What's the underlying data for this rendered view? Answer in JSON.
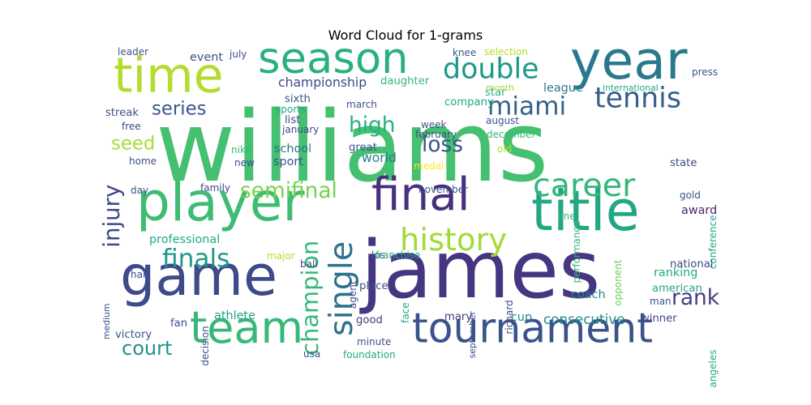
{
  "chart_data": {
    "type": "wordcloud",
    "title": "Word Cloud for 1-grams",
    "palette": [
      "#440154",
      "#482878",
      "#3e4989",
      "#31688e",
      "#26828e",
      "#1f9e89",
      "#35b779",
      "#6ece58",
      "#b5de2b",
      "#fde725"
    ],
    "words": [
      {
        "text": "williams",
        "weight": 100,
        "color": "#45bf70",
        "vertical": false
      },
      {
        "text": "james",
        "weight": 82,
        "color": "#463580",
        "vertical": false
      },
      {
        "text": "game",
        "weight": 57,
        "color": "#3e4a89",
        "vertical": false
      },
      {
        "text": "title",
        "weight": 57,
        "color": "#22a785",
        "vertical": false
      },
      {
        "text": "player",
        "weight": 55,
        "color": "#3fbc73",
        "vertical": false
      },
      {
        "text": "year",
        "weight": 54,
        "color": "#2a788e",
        "vertical": false
      },
      {
        "text": "time",
        "weight": 50,
        "color": "#b2dd2d",
        "vertical": false
      },
      {
        "text": "final",
        "weight": 47,
        "color": "#46307e",
        "vertical": false
      },
      {
        "text": "team",
        "weight": 45,
        "color": "#37b878",
        "vertical": false
      },
      {
        "text": "season",
        "weight": 44,
        "color": "#2ab07f",
        "vertical": false
      },
      {
        "text": "tournament",
        "weight": 42,
        "color": "#3a538b",
        "vertical": false
      },
      {
        "text": "career",
        "weight": 33,
        "color": "#35b779",
        "vertical": false
      },
      {
        "text": "single",
        "weight": 33,
        "color": "#2d718e",
        "vertical": true
      },
      {
        "text": "history",
        "weight": 32,
        "color": "#a2da37",
        "vertical": false
      },
      {
        "text": "double",
        "weight": 29,
        "color": "#1f988b",
        "vertical": false
      },
      {
        "text": "tennis",
        "weight": 29,
        "color": "#355f8d",
        "vertical": false
      },
      {
        "text": "miami",
        "weight": 26,
        "color": "#33638d",
        "vertical": false
      },
      {
        "text": "finals",
        "weight": 26,
        "color": "#1f988b",
        "vertical": false
      },
      {
        "text": "champion",
        "weight": 24,
        "color": "#37b878",
        "vertical": true
      },
      {
        "text": "injury",
        "weight": 23,
        "color": "#3f4889",
        "vertical": true
      },
      {
        "text": "semifinal",
        "weight": 22,
        "color": "#7ad151",
        "vertical": false
      },
      {
        "text": "high",
        "weight": 22,
        "color": "#2ab07f",
        "vertical": false
      },
      {
        "text": "loss",
        "weight": 22,
        "color": "#3b528b",
        "vertical": false
      },
      {
        "text": "rank",
        "weight": 22,
        "color": "#433e85",
        "vertical": false
      },
      {
        "text": "court",
        "weight": 20,
        "color": "#21908d",
        "vertical": false
      },
      {
        "text": "series",
        "weight": 19,
        "color": "#39568c",
        "vertical": false
      },
      {
        "text": "seed",
        "weight": 19,
        "color": "#a8db34",
        "vertical": false
      },
      {
        "text": "championship",
        "weight": 13,
        "color": "#3f4788",
        "vertical": false
      },
      {
        "text": "consecutive",
        "weight": 14,
        "color": "#228c8d",
        "vertical": false
      },
      {
        "text": "world",
        "weight": 13,
        "color": "#287d8e",
        "vertical": false
      },
      {
        "text": "school",
        "weight": 12,
        "color": "#2c728e",
        "vertical": false
      },
      {
        "text": "sport",
        "weight": 12,
        "color": "#3b528b",
        "vertical": false
      },
      {
        "text": "athlete",
        "weight": 12,
        "color": "#1fa088",
        "vertical": false
      },
      {
        "text": "professional",
        "weight": 12,
        "color": "#22a884",
        "vertical": false
      },
      {
        "text": "ranking",
        "weight": 12,
        "color": "#22a884",
        "vertical": false
      },
      {
        "text": "award",
        "weight": 12,
        "color": "#481f70",
        "vertical": false
      },
      {
        "text": "league",
        "weight": 12,
        "color": "#2a788e",
        "vertical": false
      },
      {
        "text": "event",
        "weight": 12,
        "color": "#3b528b",
        "vertical": false
      },
      {
        "text": "cup",
        "weight": 12,
        "color": "#23898e",
        "vertical": false
      },
      {
        "text": "coach",
        "weight": 12,
        "color": "#26828e",
        "vertical": false
      },
      {
        "text": "state",
        "weight": 11,
        "color": "#3e4c8a",
        "vertical": false
      },
      {
        "text": "great",
        "weight": 11,
        "color": "#3a548c",
        "vertical": false
      },
      {
        "text": "victory",
        "weight": 11,
        "color": "#3a548c",
        "vertical": false
      },
      {
        "text": "winner",
        "weight": 11,
        "color": "#3e4989",
        "vertical": false
      },
      {
        "text": "mary",
        "weight": 11,
        "color": "#453781",
        "vertical": false
      },
      {
        "text": "star",
        "weight": 11,
        "color": "#2ab07f",
        "vertical": false
      },
      {
        "text": "sixth",
        "weight": 11,
        "color": "#3b528b",
        "vertical": false
      },
      {
        "text": "list",
        "weight": 11,
        "color": "#3e4c8a",
        "vertical": false
      },
      {
        "text": "streak",
        "weight": 11,
        "color": "#3b528b",
        "vertical": false
      },
      {
        "text": "fan",
        "weight": 11,
        "color": "#3e4c8a",
        "vertical": false
      },
      {
        "text": "daughter",
        "weight": 11,
        "color": "#35b779",
        "vertical": false
      },
      {
        "text": "american",
        "weight": 11,
        "color": "#22a884",
        "vertical": false
      },
      {
        "text": "national",
        "weight": 11,
        "color": "#3e4989",
        "vertical": false
      },
      {
        "text": "place",
        "weight": 11,
        "color": "#3b528b",
        "vertical": false
      },
      {
        "text": "company",
        "weight": 11,
        "color": "#22a884",
        "vertical": false
      },
      {
        "text": "good",
        "weight": 11,
        "color": "#443a83",
        "vertical": false
      },
      {
        "text": "leader",
        "weight": 10,
        "color": "#3b528b",
        "vertical": false
      },
      {
        "text": "july",
        "weight": 10,
        "color": "#3e4c8a",
        "vertical": false
      },
      {
        "text": "knee",
        "weight": 10,
        "color": "#3b528b",
        "vertical": false
      },
      {
        "text": "selection",
        "weight": 10,
        "color": "#b5de2b",
        "vertical": false
      },
      {
        "text": "month",
        "weight": 9,
        "color": "#a0da39",
        "vertical": false
      },
      {
        "text": "international",
        "weight": 9,
        "color": "#22a884",
        "vertical": false
      },
      {
        "text": "press",
        "weight": 10,
        "color": "#3b528b",
        "vertical": false
      },
      {
        "text": "sports",
        "weight": 10,
        "color": "#22a884",
        "vertical": false
      },
      {
        "text": "march",
        "weight": 10,
        "color": "#3e4c8a",
        "vertical": false
      },
      {
        "text": "free",
        "weight": 10,
        "color": "#3e4989",
        "vertical": false
      },
      {
        "text": "january",
        "weight": 10,
        "color": "#3e4c8a",
        "vertical": false
      },
      {
        "text": "week",
        "weight": 10,
        "color": "#3b528b",
        "vertical": false
      },
      {
        "text": "august",
        "weight": 10,
        "color": "#3b528b",
        "vertical": false
      },
      {
        "text": "performance",
        "weight": 10,
        "color": "#35b779",
        "vertical": true
      },
      {
        "text": "february",
        "weight": 10,
        "color": "#3b528b",
        "vertical": false
      },
      {
        "text": "december",
        "weight": 10,
        "color": "#35b779",
        "vertical": false
      },
      {
        "text": "nike",
        "weight": 10,
        "color": "#35b779",
        "vertical": false
      },
      {
        "text": "home",
        "weight": 10,
        "color": "#3e4c8a",
        "vertical": false
      },
      {
        "text": "new",
        "weight": 10,
        "color": "#3e4c8a",
        "vertical": false
      },
      {
        "text": "old",
        "weight": 10,
        "color": "#b5de2b",
        "vertical": false
      },
      {
        "text": "medal",
        "weight": 10,
        "color": "#fde725",
        "vertical": false
      },
      {
        "text": "conference",
        "weight": 10,
        "color": "#22a884",
        "vertical": true
      },
      {
        "text": "day",
        "weight": 10,
        "color": "#3b528b",
        "vertical": false
      },
      {
        "text": "family",
        "weight": 10,
        "color": "#3e4c8a",
        "vertical": false
      },
      {
        "text": "november",
        "weight": 10,
        "color": "#3b528b",
        "vertical": false
      },
      {
        "text": "gold",
        "weight": 10,
        "color": "#3b528b",
        "vertical": false
      },
      {
        "text": "line",
        "weight": 10,
        "color": "#35b779",
        "vertical": false
      },
      {
        "text": "opponent",
        "weight": 10,
        "color": "#6ece58",
        "vertical": true
      },
      {
        "text": "ball",
        "weight": 10,
        "color": "#3e4c8a",
        "vertical": false
      },
      {
        "text": "los",
        "weight": 10,
        "color": "#3b528b",
        "vertical": false
      },
      {
        "text": "agent",
        "weight": 10,
        "color": "#3e4c8a",
        "vertical": true
      },
      {
        "text": "franchise",
        "weight": 10,
        "color": "#22a884",
        "vertical": false
      },
      {
        "text": "half",
        "weight": 10,
        "color": "#3e4c8a",
        "vertical": false
      },
      {
        "text": "major",
        "weight": 10,
        "color": "#b5de2b",
        "vertical": false
      },
      {
        "text": "medium",
        "weight": 9,
        "color": "#3b528b",
        "vertical": true
      },
      {
        "text": "decision",
        "weight": 10,
        "color": "#3e4c8a",
        "vertical": true
      },
      {
        "text": "face",
        "weight": 10,
        "color": "#22a884",
        "vertical": true
      },
      {
        "text": "september",
        "weight": 9,
        "color": "#3b528b",
        "vertical": true
      },
      {
        "text": "richard",
        "weight": 10,
        "color": "#3e4c8a",
        "vertical": true
      },
      {
        "text": "man",
        "weight": 10,
        "color": "#3b528b",
        "vertical": false
      },
      {
        "text": "angeles",
        "weight": 10,
        "color": "#22a884",
        "vertical": true
      },
      {
        "text": "minute",
        "weight": 10,
        "color": "#3b528b",
        "vertical": false
      },
      {
        "text": "usa",
        "weight": 10,
        "color": "#3b528b",
        "vertical": false
      },
      {
        "text": "foundation",
        "weight": 10,
        "color": "#22a884",
        "vertical": false
      }
    ]
  }
}
